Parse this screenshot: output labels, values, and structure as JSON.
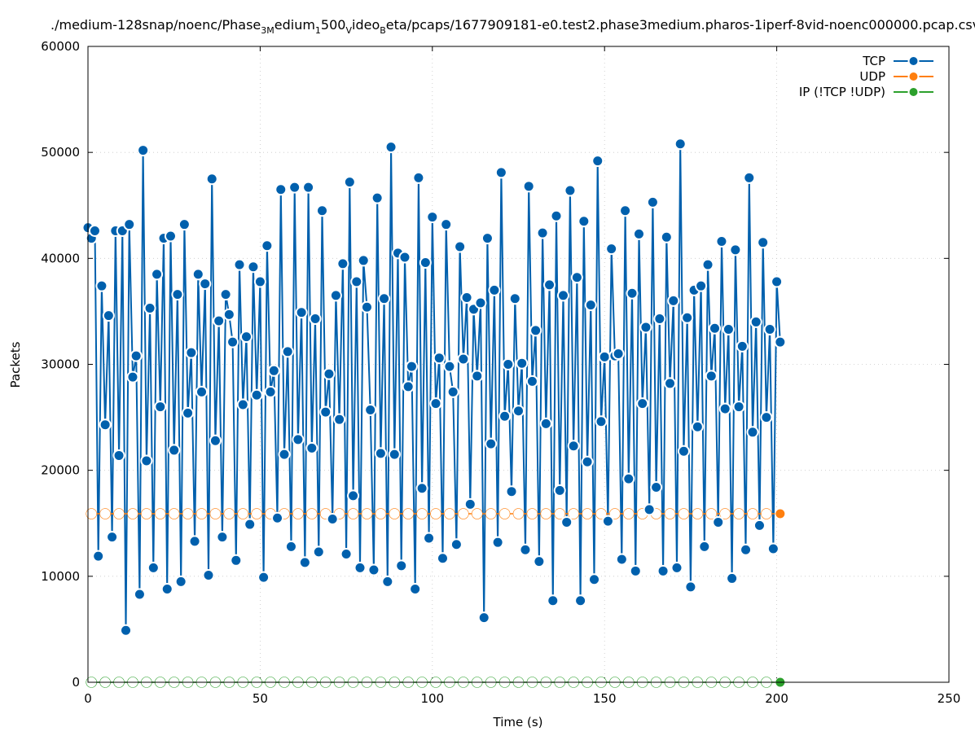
{
  "chart_data": {
    "type": "line",
    "title_parts": [
      "./medium-128snap/noenc/Phase",
      "3M",
      "edium",
      "1",
      "500",
      "V",
      "ideo",
      "B",
      "eta/pcaps/1677909181-e0.test2.phase3medium.pharos-1iperf-8vid-noenc000000.pcap.csv"
    ],
    "xlabel": "Time (s)",
    "ylabel": "Packets",
    "xlim": [
      0,
      250
    ],
    "ylim": [
      0,
      60000
    ],
    "xticks": [
      "0",
      "50",
      "100",
      "150",
      "200",
      "250"
    ],
    "yticks": [
      "0",
      "10000",
      "20000",
      "30000",
      "40000",
      "50000",
      "60000"
    ],
    "grid": true,
    "legend_position": "top-right",
    "colors": {
      "TCP": "#0060ad",
      "UDP": "#ff7f0e",
      "IP": "#2ca02c"
    },
    "series": [
      {
        "name": "TCP",
        "x_start": 0,
        "x_end": 201,
        "values": [
          42900,
          41900,
          42600,
          11900,
          37400,
          24300,
          34600,
          13700,
          42600,
          21400,
          42600,
          4900,
          43200,
          28800,
          30800,
          8300,
          50200,
          20900,
          35300,
          10800,
          38500,
          26000,
          41900,
          8800,
          42100,
          21900,
          36600,
          9500,
          43200,
          25400,
          31100,
          13300,
          38500,
          27400,
          37600,
          10100,
          47500,
          22800,
          34100,
          13700,
          36600,
          34700,
          32100,
          11500,
          39400,
          26200,
          32600,
          14900,
          39200,
          27100,
          37800,
          9900,
          41200,
          27400,
          29400,
          15500,
          46500,
          21500,
          31200,
          12800,
          46700,
          22900,
          34900,
          11300,
          46700,
          22100,
          34300,
          12300,
          44500,
          25500,
          29100,
          15400,
          36500,
          24800,
          39500,
          12100,
          47200,
          17600,
          37800,
          10800,
          39800,
          35400,
          25700,
          10600,
          45700,
          21600,
          36200,
          9500,
          50500,
          21500,
          40500,
          11000,
          40100,
          27900,
          29800,
          8800,
          47600,
          18300,
          39600,
          13600,
          43900,
          26300,
          30600,
          11700,
          43200,
          29800,
          27400,
          13000,
          41100,
          30500,
          36300,
          16800,
          35200,
          28900,
          35800,
          6100,
          41900,
          22500,
          37000,
          13200,
          48100,
          25100,
          30000,
          18000,
          36200,
          25600,
          30100,
          12500,
          46800,
          28400,
          33200,
          11400,
          42400,
          24400,
          37500,
          7700,
          44000,
          18100,
          36500,
          15100,
          46400,
          22300,
          38200,
          7700,
          43500,
          20800,
          35600,
          9700,
          49200,
          24600,
          30700,
          15200,
          40900,
          30800,
          31000,
          11600,
          44500,
          19200,
          36700,
          10500,
          42300,
          26300,
          33500,
          16300,
          45300,
          18400,
          34300,
          10500,
          42000,
          28200,
          36000,
          10800,
          50800,
          21800,
          34400,
          9000,
          37000,
          24100,
          37400,
          12800,
          39400,
          28900,
          33400,
          15100,
          41600,
          25800,
          33300,
          9800,
          40800,
          26000,
          31700,
          12500,
          47600,
          23600,
          34000,
          14800,
          41500,
          25000,
          33300,
          12600,
          37800,
          32100
        ]
      },
      {
        "name": "UDP",
        "x_start": 1,
        "x_end": 201,
        "x_step": 4,
        "constant_value": 15900
      },
      {
        "name": "IP (!TCP  !UDP)",
        "x_start": 1,
        "x_end": 201,
        "x_step": 4,
        "constant_value": 0
      }
    ]
  }
}
